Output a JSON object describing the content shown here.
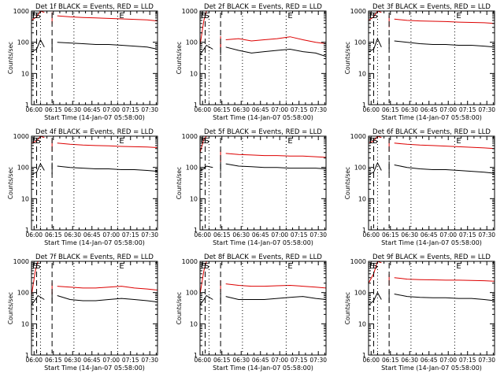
{
  "figure": {
    "xtick_labels": [
      "06:00",
      "06:15",
      "06:30",
      "06:45",
      "07:00",
      "07:15",
      "07:30"
    ],
    "xlabel": "Start Time (14-Jan-07 05:58:00)",
    "ylabel": "Counts/sec",
    "ytick_labels": [
      "1",
      "10",
      "100",
      "1000"
    ],
    "marker_labels": [
      "E",
      "S",
      "E"
    ],
    "colors": {
      "events": "#000000",
      "lld": "#dd0000",
      "axes": "#000000",
      "background": "#ffffff"
    }
  },
  "chart_data": [
    {
      "type": "line",
      "title": "Det 1f BLACK = Events, RED = LLD",
      "x": [
        0,
        4,
        7,
        10,
        20,
        30,
        40,
        50,
        60,
        70,
        80,
        90,
        98
      ],
      "series": [
        {
          "name": "Events",
          "values": [
            50,
            60,
            120,
            70,
            100,
            95,
            90,
            85,
            85,
            80,
            75,
            70,
            60
          ]
        },
        {
          "name": "LLD",
          "values": [
            500,
            650,
            1000,
            900,
            700,
            650,
            620,
            600,
            580,
            560,
            540,
            520,
            480
          ]
        }
      ],
      "gap": [
        10,
        16
      ],
      "vlines_dashed": [
        4,
        16
      ],
      "vlines_dotted": [
        7,
        33,
        67
      ],
      "xlim": [
        0,
        98
      ],
      "ylim": [
        1,
        1000
      ],
      "ylog": true
    },
    {
      "type": "line",
      "title": "Det 2f BLACK = Events, RED = LLD",
      "x": [
        0,
        3,
        5,
        10,
        20,
        30,
        40,
        50,
        60,
        70,
        80,
        90,
        98
      ],
      "series": [
        {
          "name": "Events",
          "values": [
            40,
            60,
            80,
            60,
            70,
            55,
            45,
            50,
            55,
            60,
            50,
            45,
            35
          ]
        },
        {
          "name": "LLD",
          "values": [
            80,
            500,
            1000,
            1000,
            120,
            130,
            110,
            120,
            130,
            150,
            120,
            100,
            90
          ]
        }
      ],
      "gap": [
        10,
        16
      ],
      "vlines_dashed": [
        4,
        16
      ],
      "vlines_dotted": [
        7,
        33,
        67
      ],
      "xlim": [
        0,
        98
      ],
      "ylim": [
        1,
        1000
      ],
      "ylog": true
    },
    {
      "type": "line",
      "title": "Det 3f BLACK = Events, RED = LLD",
      "x": [
        0,
        4,
        7,
        10,
        20,
        30,
        40,
        50,
        60,
        70,
        80,
        90,
        98
      ],
      "series": [
        {
          "name": "Events",
          "values": [
            50,
            60,
            130,
            70,
            110,
            100,
            90,
            85,
            85,
            80,
            80,
            75,
            70
          ]
        },
        {
          "name": "LLD",
          "values": [
            500,
            650,
            1000,
            900,
            550,
            500,
            480,
            470,
            460,
            440,
            430,
            420,
            400
          ]
        }
      ],
      "gap": [
        10,
        16
      ],
      "vlines_dashed": [
        4,
        16
      ],
      "vlines_dotted": [
        7,
        33,
        67
      ],
      "xlim": [
        0,
        98
      ],
      "ylim": [
        1,
        1000
      ],
      "ylog": true
    },
    {
      "type": "line",
      "title": "Det 4f BLACK = Events, RED = LLD",
      "x": [
        0,
        4,
        7,
        10,
        20,
        30,
        40,
        50,
        60,
        70,
        80,
        90,
        98
      ],
      "series": [
        {
          "name": "Events",
          "values": [
            60,
            70,
            130,
            80,
            110,
            100,
            95,
            90,
            90,
            85,
            85,
            80,
            75
          ]
        },
        {
          "name": "LLD",
          "values": [
            600,
            700,
            1000,
            900,
            600,
            550,
            520,
            500,
            490,
            470,
            460,
            450,
            430
          ]
        }
      ],
      "gap": [
        10,
        16
      ],
      "vlines_dashed": [
        4,
        16
      ],
      "vlines_dotted": [
        7,
        33,
        67
      ],
      "xlim": [
        0,
        98
      ],
      "ylim": [
        1,
        1000
      ],
      "ylog": true
    },
    {
      "type": "line",
      "title": "Det 5f BLACK = Events, RED = LLD",
      "x": [
        0,
        3,
        5,
        10,
        20,
        30,
        40,
        50,
        60,
        70,
        80,
        90,
        98
      ],
      "series": [
        {
          "name": "Events",
          "values": [
            80,
            90,
            110,
            100,
            130,
            110,
            105,
            100,
            100,
            95,
            95,
            95,
            90
          ]
        },
        {
          "name": "LLD",
          "values": [
            300,
            800,
            1000,
            1000,
            280,
            260,
            250,
            240,
            240,
            230,
            230,
            220,
            210
          ]
        }
      ],
      "gap": [
        10,
        16
      ],
      "vlines_dashed": [
        4,
        16
      ],
      "vlines_dotted": [
        7,
        33,
        67
      ],
      "xlim": [
        0,
        98
      ],
      "ylim": [
        1,
        1000
      ],
      "ylog": true
    },
    {
      "type": "line",
      "title": "Det 6f BLACK = Events, RED = LLD",
      "x": [
        0,
        4,
        7,
        10,
        20,
        30,
        40,
        50,
        60,
        70,
        80,
        90,
        98
      ],
      "series": [
        {
          "name": "Events",
          "values": [
            60,
            70,
            140,
            80,
            120,
            100,
            90,
            85,
            85,
            80,
            75,
            70,
            65
          ]
        },
        {
          "name": "LLD",
          "values": [
            600,
            700,
            1000,
            900,
            600,
            550,
            520,
            500,
            480,
            460,
            440,
            420,
            400
          ]
        }
      ],
      "gap": [
        10,
        16
      ],
      "vlines_dashed": [
        4,
        16
      ],
      "vlines_dotted": [
        7,
        33,
        67
      ],
      "xlim": [
        0,
        98
      ],
      "ylim": [
        1,
        1000
      ],
      "ylog": true
    },
    {
      "type": "line",
      "title": "Det 7f BLACK = Events, RED = LLD",
      "x": [
        0,
        3,
        5,
        10,
        20,
        30,
        40,
        50,
        60,
        70,
        80,
        90,
        98
      ],
      "series": [
        {
          "name": "Events",
          "values": [
            40,
            60,
            80,
            60,
            80,
            60,
            55,
            55,
            60,
            65,
            60,
            55,
            50
          ]
        },
        {
          "name": "LLD",
          "values": [
            80,
            500,
            1000,
            1000,
            160,
            150,
            140,
            140,
            150,
            160,
            140,
            130,
            120
          ]
        }
      ],
      "gap": [
        10,
        16
      ],
      "vlines_dashed": [
        4,
        16
      ],
      "vlines_dotted": [
        7,
        33,
        67
      ],
      "xlim": [
        0,
        98
      ],
      "ylim": [
        1,
        1000
      ],
      "ylog": true
    },
    {
      "type": "line",
      "title": "Det 8f BLACK = Events, RED = LLD",
      "x": [
        0,
        3,
        5,
        10,
        20,
        30,
        40,
        50,
        60,
        70,
        80,
        90,
        98
      ],
      "series": [
        {
          "name": "Events",
          "values": [
            40,
            60,
            80,
            60,
            75,
            60,
            60,
            60,
            65,
            70,
            75,
            65,
            60
          ]
        },
        {
          "name": "LLD",
          "values": [
            90,
            500,
            1000,
            1000,
            190,
            170,
            160,
            160,
            165,
            170,
            160,
            150,
            140
          ]
        }
      ],
      "gap": [
        10,
        16
      ],
      "vlines_dashed": [
        4,
        16
      ],
      "vlines_dotted": [
        7,
        33,
        67
      ],
      "xlim": [
        0,
        98
      ],
      "ylim": [
        1,
        1000
      ],
      "ylog": true
    },
    {
      "type": "line",
      "title": "Det 9f BLACK = Events, RED = LLD",
      "x": [
        0,
        4,
        7,
        10,
        20,
        30,
        40,
        50,
        60,
        70,
        80,
        90,
        98
      ],
      "series": [
        {
          "name": "Events",
          "values": [
            40,
            55,
            100,
            60,
            90,
            75,
            70,
            68,
            68,
            65,
            65,
            60,
            55
          ]
        },
        {
          "name": "LLD",
          "values": [
            200,
            400,
            1000,
            900,
            300,
            270,
            260,
            255,
            250,
            250,
            245,
            240,
            230
          ]
        }
      ],
      "gap": [
        10,
        16
      ],
      "vlines_dashed": [
        4,
        16
      ],
      "vlines_dotted": [
        7,
        33,
        67
      ],
      "xlim": [
        0,
        98
      ],
      "ylim": [
        1,
        1000
      ],
      "ylog": true
    }
  ]
}
